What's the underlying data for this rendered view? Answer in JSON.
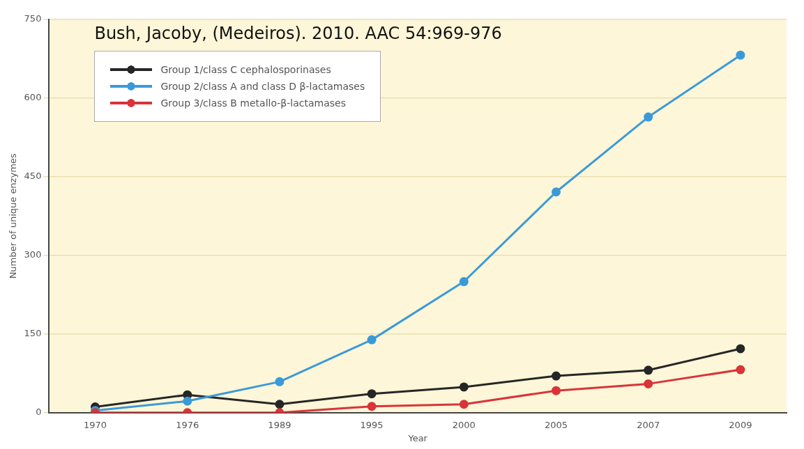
{
  "chart_data": {
    "type": "line",
    "xlabel": "Year",
    "ylabel": "Number of unique enzymes",
    "annotations": [
      "Bush, Jacoby, (Medeiros). 2010. AAC 54:969-976"
    ],
    "categories": [
      "1970",
      "1976",
      "1989",
      "1995",
      "2000",
      "2005",
      "2007",
      "2009"
    ],
    "series": [
      {
        "name": "Group 1/class C cephalosporinases",
        "color": "#262626",
        "values": [
          11,
          34,
          16,
          36,
          49,
          70,
          81,
          122
        ]
      },
      {
        "name": "Group 2/class A and class D β-lactamases",
        "color": "#3a9ad9",
        "values": [
          4,
          22,
          59,
          139,
          250,
          421,
          564,
          682
        ]
      },
      {
        "name": "Group 3/class B metallo-β-lactamases",
        "color": "#d9343a",
        "values": [
          0,
          0,
          0,
          12,
          16,
          42,
          55,
          82
        ]
      }
    ],
    "ylim": [
      0,
      750
    ],
    "yticks": [
      0,
      150,
      300,
      450,
      600,
      750
    ],
    "grid": "y",
    "legend": "top left",
    "marker": "circle",
    "line_style": "solid"
  }
}
